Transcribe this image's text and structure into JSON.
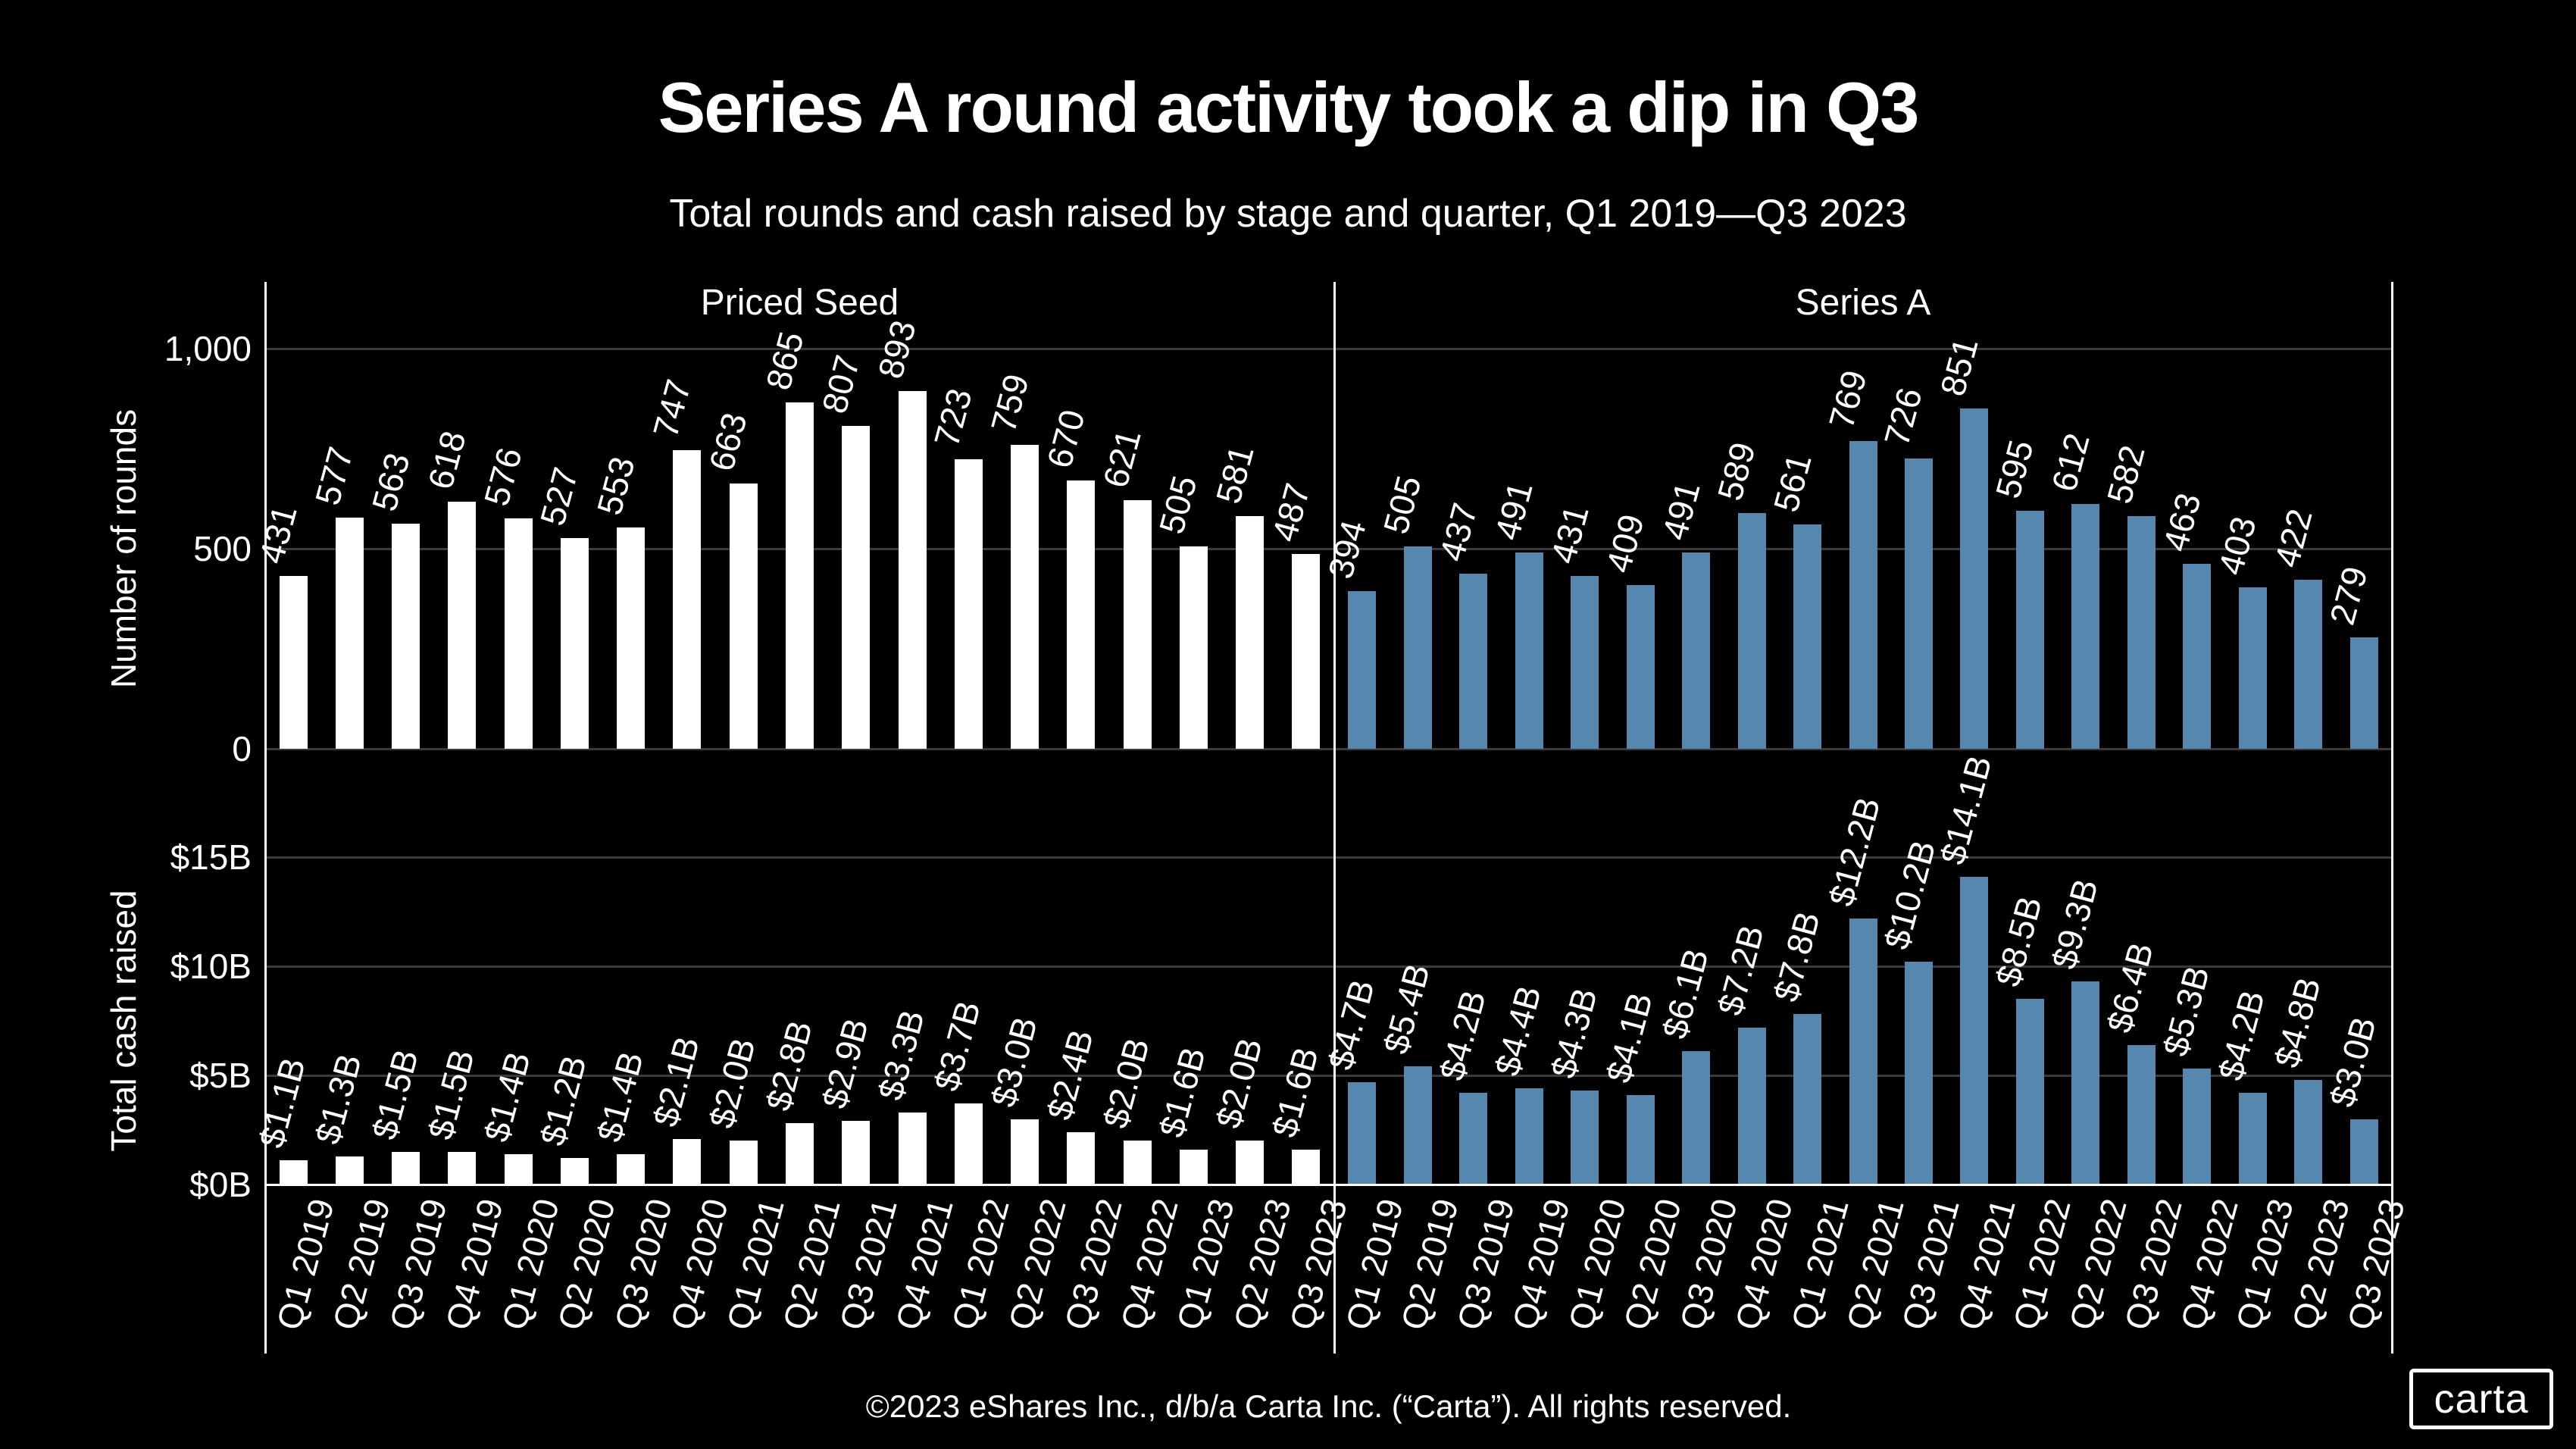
{
  "title": "Series A round activity took a dip in Q3",
  "subtitle": "Total rounds and cash raised by stage and quarter, Q1 2019—Q3 2023",
  "footer": "©2023 eShares Inc., d/b/a Carta Inc. (“Carta”). All rights reserved.",
  "logo_text": "carta",
  "colors": {
    "background": "#000000",
    "priced_seed_bar": "#ffffff",
    "series_a_bar": "#5687ae",
    "gridline": "#3a3a3a",
    "axis_line": "#ffffff",
    "text": "#ffffff"
  },
  "chart_data": [
    {
      "type": "bar",
      "title": "Priced Seed",
      "metric": "Number of rounds",
      "ylabel": "Number of rounds",
      "bar_color": "#ffffff",
      "categories": [
        "Q1 2019",
        "Q2 2019",
        "Q3 2019",
        "Q4 2019",
        "Q1 2020",
        "Q2 2020",
        "Q3 2020",
        "Q4 2020",
        "Q1 2021",
        "Q2 2021",
        "Q3 2021",
        "Q4 2021",
        "Q1 2022",
        "Q2 2022",
        "Q3 2022",
        "Q4 2022",
        "Q1 2023",
        "Q2 2023",
        "Q3 2023"
      ],
      "values": [
        431,
        577,
        563,
        618,
        576,
        527,
        553,
        747,
        663,
        865,
        807,
        893,
        723,
        759,
        670,
        621,
        505,
        581,
        487
      ],
      "bar_labels": [
        "431",
        "577",
        "563",
        "618",
        "576",
        "527",
        "553",
        "747",
        "663",
        "865",
        "807",
        "893",
        "723",
        "759",
        "670",
        "621",
        "505",
        "581",
        "487"
      ],
      "yticks": [
        {
          "label": "1,000",
          "value": 1000
        },
        {
          "label": "500",
          "value": 500
        },
        {
          "label": "0",
          "value": 0
        }
      ],
      "ylim": [
        0,
        1170
      ],
      "grid": true,
      "legend": "none"
    },
    {
      "type": "bar",
      "title": "Series A",
      "metric": "Number of rounds",
      "ylabel": "Number of rounds",
      "bar_color": "#5687ae",
      "categories": [
        "Q1 2019",
        "Q2 2019",
        "Q3 2019",
        "Q4 2019",
        "Q1 2020",
        "Q2 2020",
        "Q3 2020",
        "Q4 2020",
        "Q1 2021",
        "Q2 2021",
        "Q3 2021",
        "Q4 2021",
        "Q1 2022",
        "Q2 2022",
        "Q3 2022",
        "Q4 2022",
        "Q1 2023",
        "Q2 2023",
        "Q3 2023"
      ],
      "values": [
        394,
        505,
        437,
        491,
        431,
        409,
        491,
        589,
        561,
        769,
        726,
        851,
        595,
        612,
        582,
        463,
        403,
        422,
        279
      ],
      "bar_labels": [
        "394",
        "505",
        "437",
        "491",
        "431",
        "409",
        "491",
        "589",
        "561",
        "769",
        "726",
        "851",
        "595",
        "612",
        "582",
        "463",
        "403",
        "422",
        "279"
      ],
      "yticks": [
        {
          "label": "1,000",
          "value": 1000
        },
        {
          "label": "500",
          "value": 500
        },
        {
          "label": "0",
          "value": 0
        }
      ],
      "ylim": [
        0,
        1170
      ],
      "grid": true,
      "legend": "none"
    },
    {
      "type": "bar",
      "title": "Priced Seed",
      "metric": "Total cash raised",
      "ylabel": "Total cash raised",
      "bar_color": "#ffffff",
      "categories": [
        "Q1 2019",
        "Q2 2019",
        "Q3 2019",
        "Q4 2019",
        "Q1 2020",
        "Q2 2020",
        "Q3 2020",
        "Q4 2020",
        "Q1 2021",
        "Q2 2021",
        "Q3 2021",
        "Q4 2021",
        "Q1 2022",
        "Q2 2022",
        "Q3 2022",
        "Q4 2022",
        "Q1 2023",
        "Q2 2023",
        "Q3 2023"
      ],
      "values": [
        1.1,
        1.3,
        1.5,
        1.5,
        1.4,
        1.2,
        1.4,
        2.1,
        2.0,
        2.8,
        2.9,
        3.3,
        3.7,
        3.0,
        2.4,
        2.0,
        1.6,
        2.0,
        1.6
      ],
      "bar_labels": [
        "$1.1B",
        "$1.3B",
        "$1.5B",
        "$1.5B",
        "$1.4B",
        "$1.2B",
        "$1.4B",
        "$2.1B",
        "$2.0B",
        "$2.8B",
        "$2.9B",
        "$3.3B",
        "$3.7B",
        "$3.0B",
        "$2.4B",
        "$2.0B",
        "$1.6B",
        "$2.0B",
        "$1.6B"
      ],
      "yticks": [
        {
          "label": "$15B",
          "value": 15
        },
        {
          "label": "$10B",
          "value": 10
        },
        {
          "label": "$5B",
          "value": 5
        },
        {
          "label": "$0B",
          "value": 0
        }
      ],
      "ylim": [
        0,
        15
      ],
      "grid": true,
      "legend": "none"
    },
    {
      "type": "bar",
      "title": "Series A",
      "metric": "Total cash raised",
      "ylabel": "Total cash raised",
      "bar_color": "#5687ae",
      "categories": [
        "Q1 2019",
        "Q2 2019",
        "Q3 2019",
        "Q4 2019",
        "Q1 2020",
        "Q2 2020",
        "Q3 2020",
        "Q4 2020",
        "Q1 2021",
        "Q2 2021",
        "Q3 2021",
        "Q4 2021",
        "Q1 2022",
        "Q2 2022",
        "Q3 2022",
        "Q4 2022",
        "Q1 2023",
        "Q2 2023",
        "Q3 2023"
      ],
      "values": [
        4.7,
        5.4,
        4.2,
        4.4,
        4.3,
        4.1,
        6.1,
        7.2,
        7.8,
        12.2,
        10.2,
        14.1,
        8.5,
        9.3,
        6.4,
        5.3,
        4.2,
        4.8,
        3.0
      ],
      "bar_labels": [
        "$4.7B",
        "$5.4B",
        "$4.2B",
        "$4.4B",
        "$4.3B",
        "$4.1B",
        "$6.1B",
        "$7.2B",
        "$7.8B",
        "$12.2B",
        "$10.2B",
        "$14.1B",
        "$8.5B",
        "$9.3B",
        "$6.4B",
        "$5.3B",
        "$4.2B",
        "$4.8B",
        "$3.0B"
      ],
      "yticks": [
        {
          "label": "$15B",
          "value": 15
        },
        {
          "label": "$10B",
          "value": 10
        },
        {
          "label": "$5B",
          "value": 5
        },
        {
          "label": "$0B",
          "value": 0
        }
      ],
      "ylim": [
        0,
        15
      ],
      "grid": true,
      "legend": "none"
    }
  ]
}
